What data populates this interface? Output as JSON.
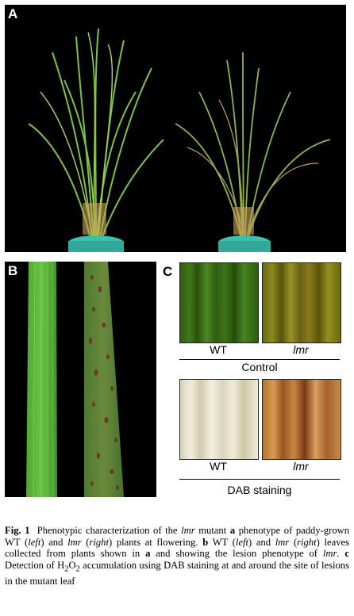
{
  "panels": {
    "a_label": "A",
    "b_label": "B",
    "c_label": "C"
  },
  "panel_c": {
    "top_left_label": "WT",
    "top_right_label": "lmr",
    "top_group_label": "Control",
    "bottom_left_label": "WT",
    "bottom_right_label": "lmr",
    "bottom_group_label": "DAB staining"
  },
  "caption": {
    "fig": "Fig. 1",
    "t1": "Phenotypic characterization of the",
    "lmr1": "lmr",
    "t2": "mutant",
    "a": "a",
    "t3": "phenotype of paddy-grown WT (",
    "left1": "left",
    "t4": ") and",
    "lmr2": "lmr",
    "t5": "(",
    "right1": "right",
    "t6": ") plants at flowering.",
    "b": "b",
    "t7": "WT (",
    "left2": "left",
    "t8": ") and",
    "lmr3": "lmr",
    "t9": "(",
    "right2": "right",
    "t10": ") leaves collected from plants shown in",
    "a2": "a",
    "t11": "and showing the lesion phenotype of",
    "lmr4": "lmr",
    "t12": ".",
    "c": "c",
    "t13": "Detection of H",
    "sub2a": "2",
    "t14": "O",
    "sub2b": "2",
    "t15": "accumulation using DAB staining at and around the site of lesions in the mutant leaf"
  }
}
